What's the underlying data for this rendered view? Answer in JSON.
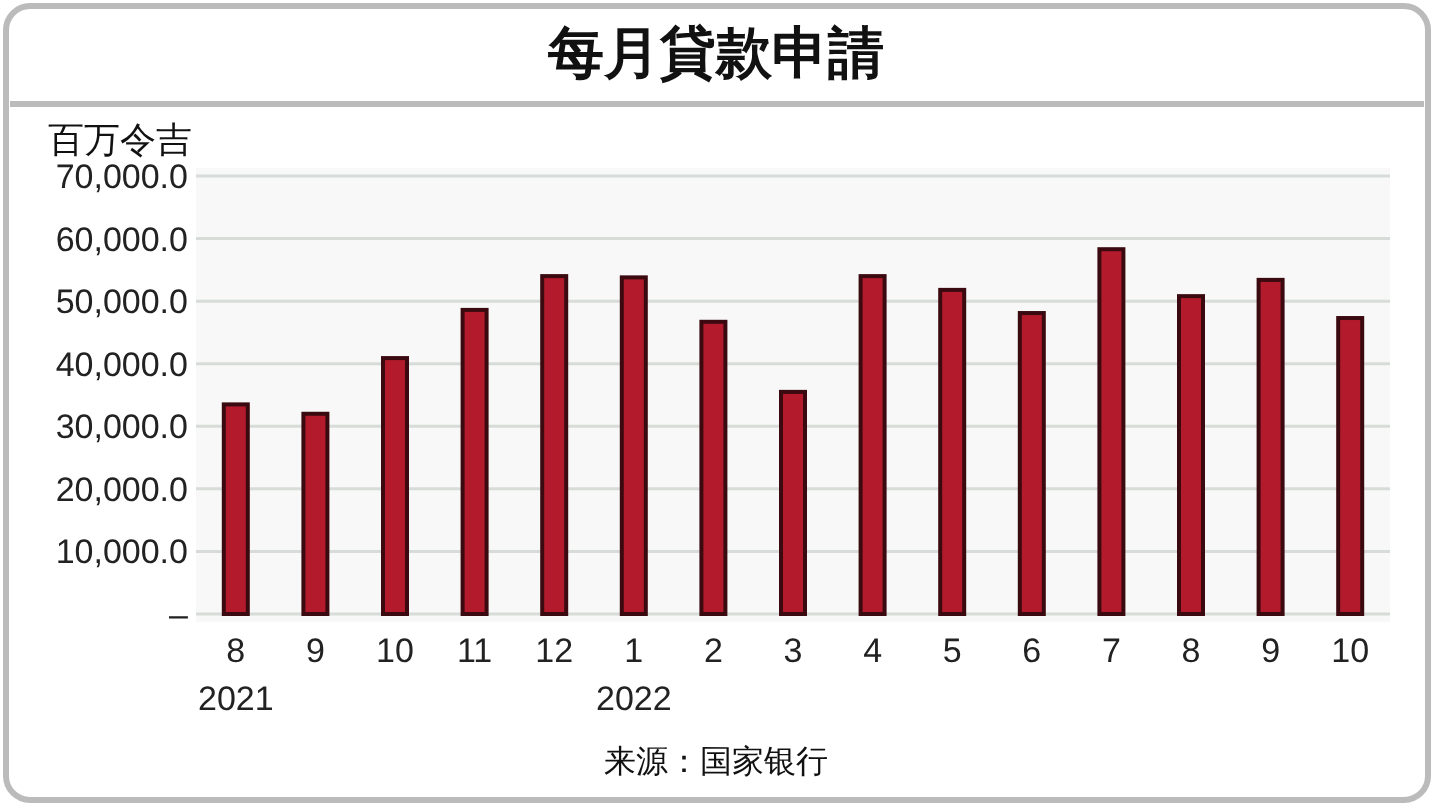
{
  "chart_data": {
    "type": "bar",
    "title": "每月貸款申請",
    "ylabel": "百万令吉",
    "categories": [
      "8 2021",
      "9",
      "10",
      "11",
      "12",
      "1 2022",
      "2",
      "3",
      "4",
      "5",
      "6",
      "7",
      "8",
      "9",
      "10"
    ],
    "values": [
      33500,
      32000,
      40900,
      48600,
      54000,
      53800,
      46700,
      35500,
      54000,
      51800,
      48100,
      58300,
      50800,
      53400,
      47300
    ],
    "color": "#b31b2c",
    "ylim": [
      0,
      70000
    ],
    "yticks": [
      {
        "value": 0,
        "label": "–"
      },
      {
        "value": 10000,
        "label": "10,000.0"
      },
      {
        "value": 20000,
        "label": "20,000.0"
      },
      {
        "value": 30000,
        "label": "30,000.0"
      },
      {
        "value": 40000,
        "label": "40,000.0"
      },
      {
        "value": 50000,
        "label": "50,000.0"
      },
      {
        "value": 60000,
        "label": "60,000.0"
      },
      {
        "value": 70000,
        "label": "70,000.0"
      }
    ],
    "grid": "y",
    "annotations": [
      "来源：国家银行"
    ]
  }
}
